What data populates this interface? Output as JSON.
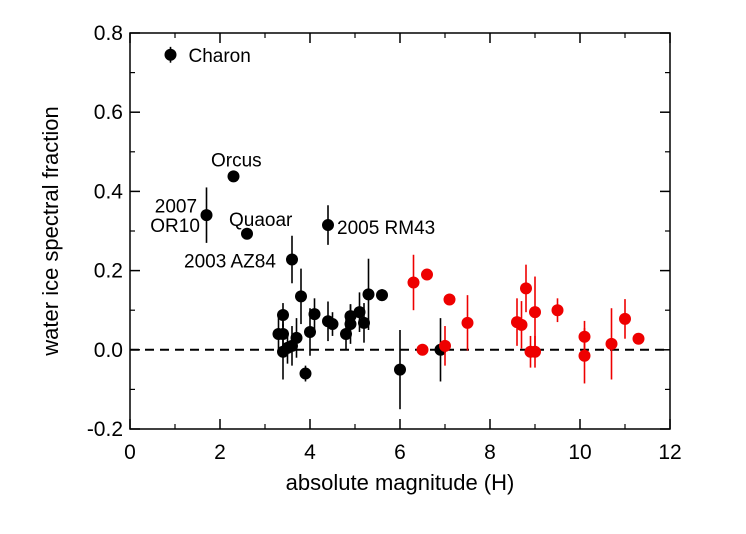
{
  "chart_data": {
    "type": "scatter",
    "xlabel": "absolute magnitude (H)",
    "ylabel": "water ice spectral fraction",
    "xlim": [
      0,
      12
    ],
    "ylim": [
      -0.2,
      0.8
    ],
    "xticks": [
      0,
      2,
      4,
      6,
      8,
      10,
      12
    ],
    "yticks": [
      -0.2,
      0.0,
      0.2,
      0.4,
      0.6,
      0.8
    ],
    "xtick_labels": [
      "0",
      "2",
      "4",
      "6",
      "8",
      "10",
      "12"
    ],
    "ytick_labels": [
      "-0.2",
      "0.0",
      "0.2",
      "0.4",
      "0.6",
      "0.8"
    ],
    "reference_line": {
      "y": 0.0,
      "style": "dashed"
    },
    "colors": {
      "black_series": "#000000",
      "red_series": "#ee0000"
    },
    "series": [
      {
        "color": "black",
        "points": [
          {
            "x": 0.9,
            "y": 0.745,
            "err": 0.02
          },
          {
            "x": 2.3,
            "y": 0.438,
            "err": 0.0
          },
          {
            "x": 1.7,
            "y": 0.34,
            "err": 0.07
          },
          {
            "x": 2.6,
            "y": 0.293,
            "err": 0.0
          },
          {
            "x": 4.4,
            "y": 0.315,
            "err": 0.05
          },
          {
            "x": 3.6,
            "y": 0.228,
            "err": 0.06
          },
          {
            "x": 3.3,
            "y": 0.04,
            "err": 0.04
          },
          {
            "x": 3.4,
            "y": 0.088,
            "err": 0.03
          },
          {
            "x": 3.4,
            "y": 0.04,
            "err": 0.06
          },
          {
            "x": 3.4,
            "y": -0.005,
            "err": 0.07
          },
          {
            "x": 3.5,
            "y": 0.005,
            "err": 0.04
          },
          {
            "x": 3.6,
            "y": 0.01,
            "err": 0.05
          },
          {
            "x": 3.7,
            "y": 0.03,
            "err": 0.05
          },
          {
            "x": 3.8,
            "y": 0.135,
            "err": 0.07
          },
          {
            "x": 3.9,
            "y": -0.06,
            "err": 0.02
          },
          {
            "x": 4.0,
            "y": 0.045,
            "err": 0.06
          },
          {
            "x": 4.1,
            "y": 0.09,
            "err": 0.04
          },
          {
            "x": 4.4,
            "y": 0.072,
            "err": 0.05
          },
          {
            "x": 4.5,
            "y": 0.065,
            "err": 0.03
          },
          {
            "x": 4.8,
            "y": 0.04,
            "err": 0.04
          },
          {
            "x": 4.9,
            "y": 0.065,
            "err": 0.05
          },
          {
            "x": 4.9,
            "y": 0.085,
            "err": 0.03
          },
          {
            "x": 5.1,
            "y": 0.095,
            "err": 0.05
          },
          {
            "x": 5.2,
            "y": 0.068,
            "err": 0.05
          },
          {
            "x": 5.3,
            "y": 0.14,
            "err": 0.09
          },
          {
            "x": 5.6,
            "y": 0.138,
            "err": 0.015
          },
          {
            "x": 6.0,
            "y": -0.05,
            "err": 0.1
          },
          {
            "x": 6.9,
            "y": 0.0,
            "err": 0.08
          }
        ]
      },
      {
        "color": "red",
        "points": [
          {
            "x": 6.3,
            "y": 0.17,
            "err": 0.07
          },
          {
            "x": 6.6,
            "y": 0.19,
            "err": 0.0
          },
          {
            "x": 6.5,
            "y": 0.0,
            "err": 0.0
          },
          {
            "x": 7.0,
            "y": 0.01,
            "err": 0.05
          },
          {
            "x": 7.1,
            "y": 0.127,
            "err": 0.0
          },
          {
            "x": 7.5,
            "y": 0.068,
            "err": 0.07
          },
          {
            "x": 8.6,
            "y": 0.07,
            "err": 0.06
          },
          {
            "x": 8.7,
            "y": 0.063,
            "err": 0.06
          },
          {
            "x": 8.8,
            "y": 0.155,
            "err": 0.06
          },
          {
            "x": 8.9,
            "y": -0.005,
            "err": 0.04
          },
          {
            "x": 9.0,
            "y": 0.095,
            "err": 0.09
          },
          {
            "x": 9.0,
            "y": -0.005,
            "err": 0.04
          },
          {
            "x": 9.5,
            "y": 0.1,
            "err": 0.03
          },
          {
            "x": 10.1,
            "y": 0.033,
            "err": 0.04
          },
          {
            "x": 10.1,
            "y": -0.015,
            "err": 0.07
          },
          {
            "x": 10.7,
            "y": 0.015,
            "err": 0.09
          },
          {
            "x": 11.0,
            "y": 0.078,
            "err": 0.05
          },
          {
            "x": 11.3,
            "y": 0.028,
            "err": 0.0
          }
        ]
      }
    ],
    "annotations": [
      {
        "text": "Charon",
        "x": 1.3,
        "y": 0.745,
        "anchor": "start"
      },
      {
        "text": "Orcus",
        "x": 1.8,
        "y": 0.48,
        "anchor": "start"
      },
      {
        "text": "2007",
        "x": 0.55,
        "y": 0.365,
        "anchor": "start"
      },
      {
        "text": "OR10",
        "x": 0.45,
        "y": 0.315,
        "anchor": "start"
      },
      {
        "text": "Quaoar",
        "x": 2.2,
        "y": 0.33,
        "anchor": "start"
      },
      {
        "text": "2005 RM43",
        "x": 4.6,
        "y": 0.31,
        "anchor": "start"
      },
      {
        "text": "2003 AZ84",
        "x": 1.2,
        "y": 0.225,
        "anchor": "start"
      }
    ]
  }
}
